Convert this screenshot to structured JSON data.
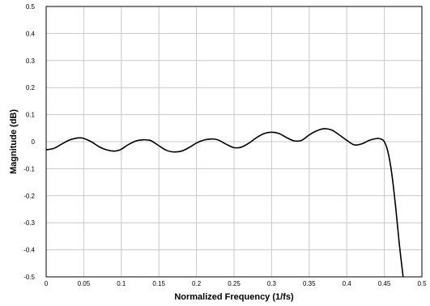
{
  "chart_data": {
    "type": "line",
    "title": "",
    "xlabel": "Normalized Frequency (1/fs)",
    "ylabel": "Magnitude (dB)",
    "xlim": [
      0,
      0.5
    ],
    "ylim": [
      -0.5,
      0.5
    ],
    "grid": true,
    "x_ticks": [
      "0",
      "0.05",
      "0.1",
      "0.15",
      "0.2",
      "0.25",
      "0.3",
      "0.35",
      "0.4",
      "0.45",
      "0.5"
    ],
    "y_ticks": [
      "0.5",
      "0.4",
      "0.3",
      "0.2",
      "0.1",
      "0",
      "-0.1",
      "-0.2",
      "-0.3",
      "-0.4",
      "-0.5"
    ],
    "series": [
      {
        "name": "",
        "color": "#000000",
        "x": [
          0,
          0.01,
          0.02,
          0.03,
          0.04,
          0.045,
          0.05,
          0.06,
          0.07,
          0.08,
          0.09,
          0.095,
          0.1,
          0.11,
          0.12,
          0.13,
          0.135,
          0.14,
          0.15,
          0.16,
          0.17,
          0.18,
          0.19,
          0.2,
          0.21,
          0.22,
          0.225,
          0.23,
          0.24,
          0.25,
          0.26,
          0.27,
          0.28,
          0.29,
          0.3,
          0.31,
          0.32,
          0.33,
          0.34,
          0.35,
          0.36,
          0.37,
          0.38,
          0.39,
          0.4,
          0.41,
          0.42,
          0.43,
          0.44,
          0.445,
          0.45,
          0.455,
          0.46,
          0.465,
          0.47,
          0.475
        ],
        "values": [
          -0.03,
          -0.025,
          -0.01,
          0.005,
          0.013,
          0.014,
          0.012,
          0.0,
          -0.018,
          -0.03,
          -0.035,
          -0.033,
          -0.028,
          -0.01,
          0.003,
          0.007,
          0.006,
          0.003,
          -0.015,
          -0.032,
          -0.038,
          -0.035,
          -0.022,
          -0.005,
          0.006,
          0.01,
          0.009,
          0.005,
          -0.01,
          -0.022,
          -0.02,
          -0.005,
          0.015,
          0.03,
          0.035,
          0.03,
          0.015,
          0.003,
          0.005,
          0.025,
          0.04,
          0.048,
          0.043,
          0.025,
          0.005,
          -0.012,
          -0.008,
          0.005,
          0.012,
          0.01,
          0.0,
          -0.04,
          -0.12,
          -0.24,
          -0.38,
          -0.5
        ]
      }
    ]
  }
}
